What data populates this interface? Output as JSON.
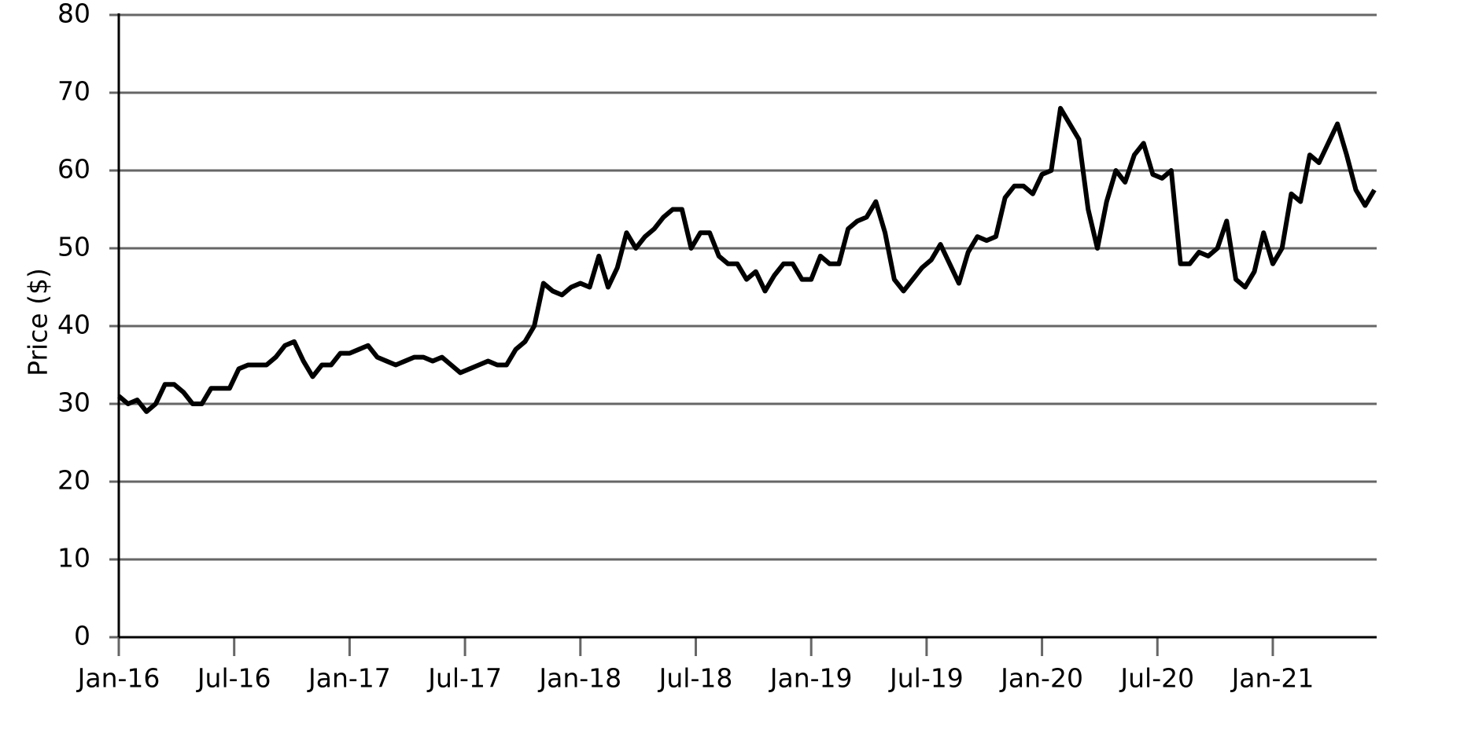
{
  "chart_data": {
    "type": "line",
    "y_label": "Price ($)",
    "x": [
      2016,
      2016.04,
      2016.08,
      2016.12,
      2016.16,
      2016.2,
      2016.24,
      2016.28,
      2016.32,
      2016.36,
      2016.4,
      2016.44,
      2016.48,
      2016.52,
      2016.56,
      2016.6,
      2016.64,
      2016.68,
      2016.72,
      2016.76,
      2016.8,
      2016.84,
      2016.88,
      2016.92,
      2016.96,
      2017,
      2017.04,
      2017.08,
      2017.12,
      2017.16,
      2017.2,
      2017.24,
      2017.28,
      2017.32,
      2017.36,
      2017.4,
      2017.44,
      2017.48,
      2017.52,
      2017.56,
      2017.6,
      2017.64,
      2017.68,
      2017.72,
      2017.76,
      2017.8,
      2017.84,
      2017.88,
      2017.92,
      2017.96,
      2018,
      2018.04,
      2018.08,
      2018.12,
      2018.16,
      2018.2,
      2018.24,
      2018.28,
      2018.32,
      2018.36,
      2018.4,
      2018.44,
      2018.48,
      2018.52,
      2018.56,
      2018.6,
      2018.64,
      2018.68,
      2018.72,
      2018.76,
      2018.8,
      2018.84,
      2018.88,
      2018.92,
      2018.96,
      2019,
      2019.04,
      2019.08,
      2019.12,
      2019.16,
      2019.2,
      2019.24,
      2019.28,
      2019.32,
      2019.36,
      2019.4,
      2019.44,
      2019.48,
      2019.52,
      2019.56,
      2019.6,
      2019.64,
      2019.68,
      2019.72,
      2019.76,
      2019.8,
      2019.84,
      2019.88,
      2019.92,
      2019.96,
      2020,
      2020.04,
      2020.08,
      2020.12,
      2020.16,
      2020.2,
      2020.24,
      2020.28,
      2020.32,
      2020.36,
      2020.4,
      2020.44,
      2020.48,
      2020.52,
      2020.56,
      2020.6,
      2020.64,
      2020.68,
      2020.72,
      2020.76,
      2020.8,
      2020.84,
      2020.88,
      2020.92,
      2020.96,
      2021,
      2021.04,
      2021.08,
      2021.12,
      2021.16,
      2021.2,
      2021.24,
      2021.28,
      2021.32,
      2021.36,
      2021.4,
      2021.44
    ],
    "values": [
      31,
      30,
      30.5,
      29,
      30,
      32.5,
      32.5,
      31.5,
      30,
      30,
      32,
      32,
      32,
      34.5,
      35,
      35,
      35,
      36,
      37.5,
      38,
      35.5,
      33.5,
      35,
      35,
      36.5,
      36.5,
      37,
      37.5,
      36,
      35.5,
      35,
      35.5,
      36,
      36,
      35.5,
      36,
      35,
      34,
      34.5,
      35,
      35.5,
      35,
      35,
      37,
      38,
      40,
      45.5,
      44.5,
      44,
      45,
      45.5,
      45,
      49,
      45,
      47.5,
      52,
      50,
      51.5,
      52.5,
      54,
      55,
      55,
      50,
      52,
      52,
      49,
      48,
      48,
      46,
      47,
      44.5,
      46.5,
      48,
      48,
      46,
      46,
      49,
      48,
      48,
      52.5,
      53.5,
      54,
      56,
      52,
      46,
      44.5,
      46,
      47.5,
      48.5,
      50.5,
      48,
      45.5,
      49.5,
      51.5,
      51,
      51.5,
      56.5,
      58,
      58,
      57,
      59.5,
      60,
      68,
      66,
      64,
      55,
      50,
      56,
      60,
      58.5,
      62,
      63.5,
      59.5,
      59,
      60,
      48,
      48,
      49.5,
      49,
      50,
      53.5,
      46,
      45,
      47,
      52,
      48,
      50,
      57,
      56,
      62,
      61,
      63.5,
      66,
      62,
      57.5,
      55.5,
      57.5
    ],
    "color": "#000000",
    "xlim": [
      2016,
      2021.45
    ],
    "xticks": [
      {
        "value": 2016,
        "label": "Jan-16"
      },
      {
        "value": 2016.5,
        "label": "Jul-16"
      },
      {
        "value": 2017,
        "label": "Jan-17"
      },
      {
        "value": 2017.5,
        "label": "Jul-17"
      },
      {
        "value": 2018,
        "label": "Jan-18"
      },
      {
        "value": 2018.5,
        "label": "Jul-18"
      },
      {
        "value": 2019,
        "label": "Jan-19"
      },
      {
        "value": 2019.5,
        "label": "Jul-19"
      },
      {
        "value": 2020,
        "label": "Jan-20"
      },
      {
        "value": 2020.5,
        "label": "Jul-20"
      },
      {
        "value": 2021,
        "label": "Jan-21"
      }
    ],
    "ylim": [
      0,
      80
    ],
    "yticks": [
      0,
      10,
      20,
      30,
      40,
      50,
      60,
      70,
      80
    ],
    "grid": true
  }
}
